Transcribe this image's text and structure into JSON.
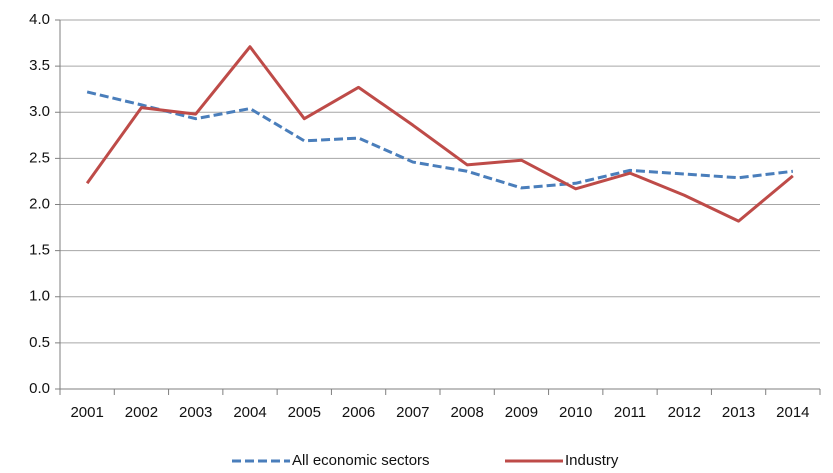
{
  "chart_data": {
    "type": "line",
    "categories": [
      "2001",
      "2002",
      "2003",
      "2004",
      "2005",
      "2006",
      "2007",
      "2008",
      "2009",
      "2010",
      "2011",
      "2012",
      "2013",
      "2014"
    ],
    "series": [
      {
        "name": "All economic sectors",
        "color": "#4a7ebb",
        "line_style": "dashed",
        "values": [
          3.22,
          3.08,
          2.93,
          3.04,
          2.69,
          2.72,
          2.46,
          2.36,
          2.18,
          2.23,
          2.37,
          2.33,
          2.29,
          2.36
        ]
      },
      {
        "name": "Industry",
        "color": "#be4b48",
        "line_style": "solid",
        "values": [
          2.23,
          3.05,
          2.98,
          3.71,
          2.93,
          3.27,
          2.86,
          2.43,
          2.48,
          2.17,
          2.34,
          2.1,
          1.82,
          2.31
        ]
      }
    ],
    "ylim": [
      0,
      4
    ],
    "yticks": [
      {
        "value": 0,
        "label": "0.0"
      },
      0.5,
      {
        "value": 1,
        "label": "1.0"
      },
      1.5,
      {
        "value": 2,
        "label": "2.0"
      },
      2.5,
      {
        "value": 3,
        "label": "3.0"
      },
      3.5,
      {
        "value": 4,
        "label": "4.0"
      }
    ],
    "grid": true,
    "legend": "bottom"
  }
}
